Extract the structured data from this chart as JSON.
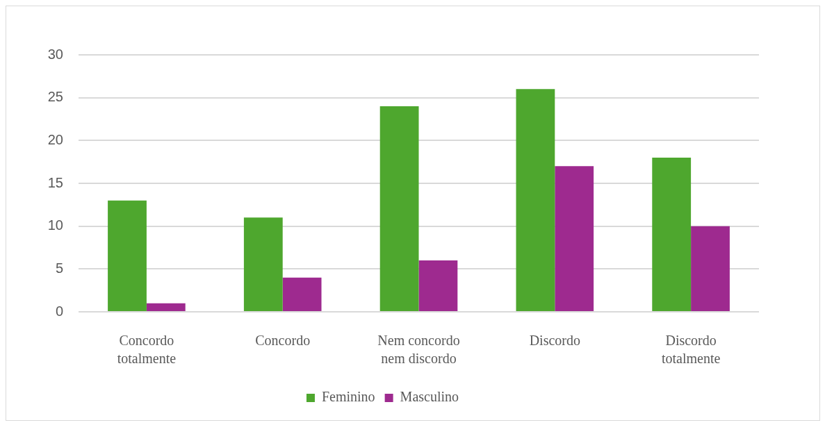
{
  "chart_data": {
    "type": "bar",
    "categories": [
      "Concordo totalmente",
      "Concordo",
      "Nem concordo nem discordo",
      "Discordo",
      "Discordo totalmente"
    ],
    "series": [
      {
        "name": "Feminino",
        "color": "#4ea72e",
        "values": [
          13,
          11,
          24,
          26,
          18
        ]
      },
      {
        "name": "Masculino",
        "color": "#9e2a8f",
        "values": [
          1,
          4,
          6,
          17,
          10
        ]
      }
    ],
    "ylim": [
      0,
      30
    ],
    "yticks": [
      0,
      5,
      10,
      15,
      20,
      25,
      30
    ],
    "grid": "y",
    "legend": "bottom"
  }
}
